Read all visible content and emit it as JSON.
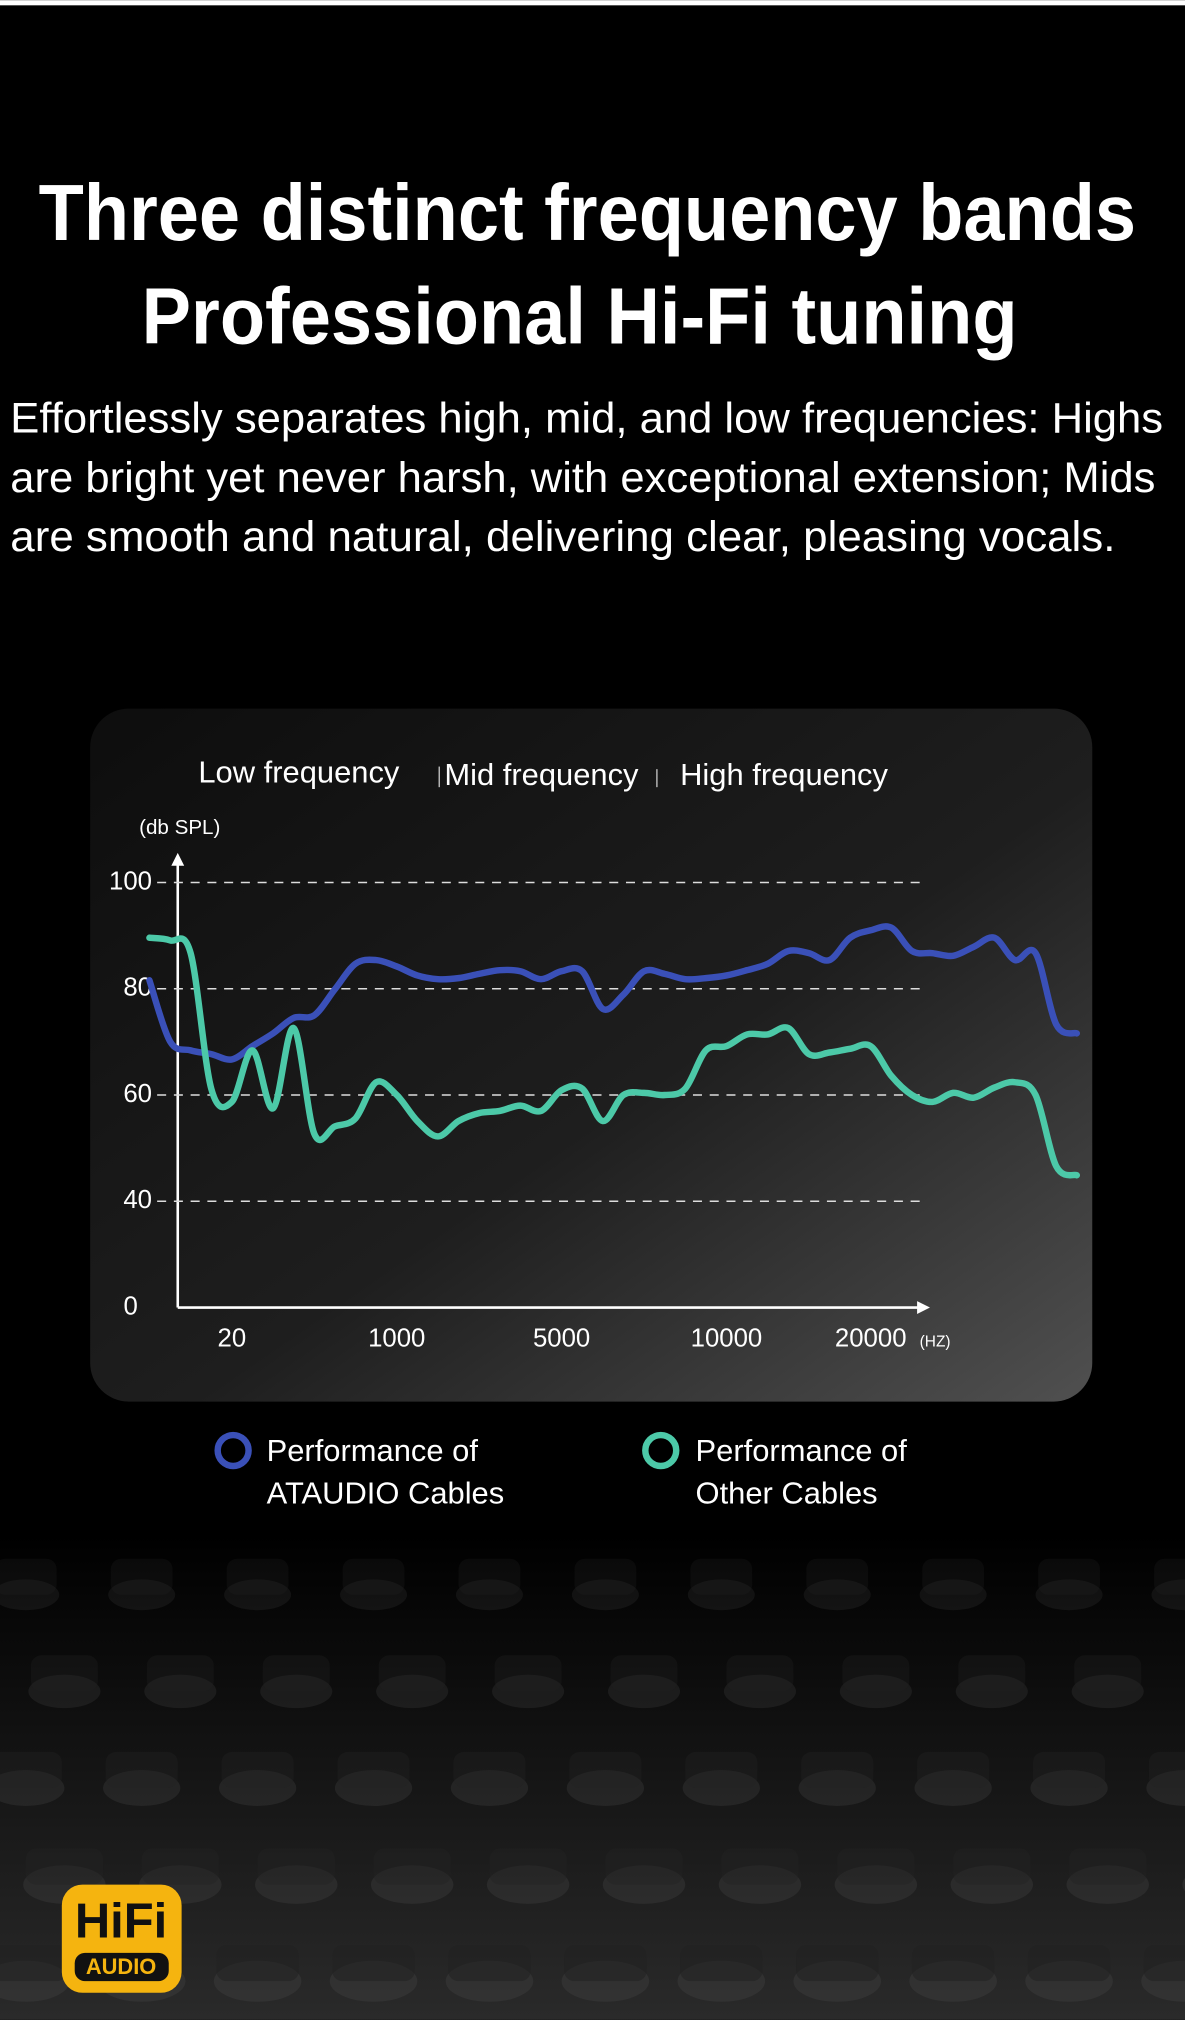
{
  "chart_data": {
    "type": "line",
    "title_lines": [
      "Three distinct frequency bands",
      "Professional Hi-Fi tuning"
    ],
    "description_lines": [
      "Effortlessly separates high, mid, and low frequencies: Highs",
      "are bright yet never harsh, with exceptional extension; Mids",
      "are smooth and natural, delivering clear, pleasing vocals."
    ],
    "band_labels": [
      "Low frequency",
      "Mid frequency",
      "High frequency"
    ],
    "y_label": "(db SPL)",
    "x_label": "(HZ)",
    "y_origin_label": "0",
    "categories": [
      null,
      null,
      null,
      null,
      "20",
      null,
      null,
      null,
      null,
      null,
      null,
      null,
      "1000",
      null,
      null,
      null,
      null,
      null,
      null,
      null,
      "5000",
      null,
      null,
      null,
      null,
      null,
      null,
      null,
      "10000",
      null,
      null,
      null,
      null,
      null,
      null,
      "20000",
      null,
      null,
      null,
      null,
      null,
      null,
      null,
      null,
      null,
      null
    ],
    "ylim": [
      20,
      100
    ],
    "yticks": [
      40,
      60,
      80,
      100
    ],
    "grid": true,
    "series": [
      {
        "name": "Performance of ATAUDIO Cables",
        "color": "#3a50b8",
        "values": [
          81.6,
          70.1,
          68.4,
          67.7,
          66.7,
          69.2,
          71.6,
          74.5,
          75.0,
          79.9,
          84.7,
          85.4,
          84.2,
          82.5,
          81.8,
          82.0,
          82.8,
          83.5,
          83.3,
          81.8,
          83.3,
          83.3,
          76.2,
          78.9,
          83.3,
          82.8,
          81.8,
          82.0,
          82.5,
          83.5,
          84.7,
          87.1,
          86.7,
          85.4,
          89.6,
          91.0,
          91.5,
          87.1,
          86.7,
          86.2,
          87.9,
          89.6,
          85.4,
          86.7,
          73.3,
          71.6
        ]
      },
      {
        "name": "Performance of Other Cables",
        "color": "#4cc9a8",
        "values": [
          89.6,
          89.1,
          86.7,
          61.2,
          58.7,
          68.4,
          57.5,
          72.6,
          52.7,
          54.1,
          55.6,
          62.4,
          60.0,
          55.1,
          52.2,
          55.1,
          56.6,
          57.0,
          58.0,
          57.0,
          60.9,
          61.2,
          55.1,
          60.0,
          60.4,
          60.0,
          61.2,
          68.4,
          69.2,
          71.4,
          71.4,
          72.6,
          67.7,
          68.0,
          68.7,
          69.2,
          63.6,
          60.0,
          58.7,
          60.4,
          59.5,
          61.4,
          62.4,
          60.0,
          46.6,
          44.9
        ]
      }
    ],
    "logo": {
      "top": "HiFi",
      "bottom": "AUDIO"
    }
  }
}
